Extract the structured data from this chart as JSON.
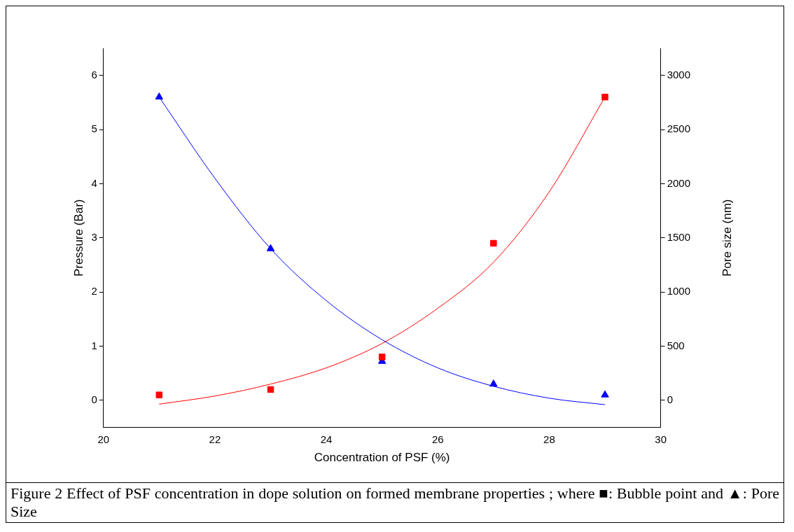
{
  "chart_data": {
    "type": "scatter",
    "xlabel": "Concentration of PSF (%)",
    "ylabel": "Pressure (Bar)",
    "y2label": "Pore size (nm)",
    "x": [
      21,
      23,
      25,
      27,
      29
    ],
    "series": [
      {
        "color": "#ff0000",
        "marker": "square",
        "values": [
          0.1,
          0.2,
          0.8,
          2.9,
          5.6
        ]
      },
      {
        "color": "#0000ff",
        "marker": "triangle",
        "axis": "y2",
        "values": [
          2800,
          1400,
          360,
          150,
          50
        ]
      },
      {
        "type": "line",
        "color": "#ff0000",
        "marker": "none",
        "x": [
          21,
          22,
          23,
          24,
          25,
          26,
          27,
          28,
          29
        ],
        "values": [
          -0.07,
          0.08,
          0.3,
          0.6,
          1.05,
          1.7,
          2.55,
          3.85,
          5.6
        ]
      },
      {
        "type": "line",
        "color": "#0000ff",
        "marker": "none",
        "axis": "y2",
        "x": [
          21,
          22,
          23,
          24,
          25,
          26,
          27,
          28,
          29
        ],
        "values": [
          2800,
          2050,
          1400,
          920,
          560,
          300,
          130,
          20,
          -40
        ]
      }
    ],
    "xlim": [
      20,
      30
    ],
    "xticks": [
      20,
      22,
      24,
      26,
      28,
      30
    ],
    "ylim": [
      -0.5,
      6.5
    ],
    "yticks": [
      0,
      1,
      2,
      3,
      4,
      5,
      6
    ],
    "y2lim": [
      -250,
      3250
    ],
    "y2ticks": [
      0,
      500,
      1000,
      1500,
      2000,
      2500,
      3000
    ],
    "grid": false,
    "legend": false,
    "annotations": [
      "Figure 2 Effect of PSF concentration in dope solution on formed membrane properties ; where ■: Bubble point and ▲: Pore Size"
    ]
  }
}
